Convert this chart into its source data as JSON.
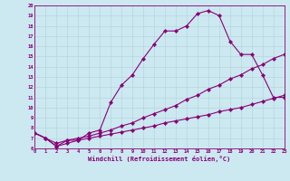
{
  "xlabel": "Windchill (Refroidissement éolien,°C)",
  "bg_color": "#cce8f0",
  "line_color": "#880077",
  "xmin": 0,
  "xmax": 23,
  "ymin": 6,
  "ymax": 20,
  "line1_x": [
    0,
    1,
    2,
    3,
    4,
    5,
    6,
    7,
    8,
    9,
    10,
    11,
    12,
    13,
    14,
    15,
    16,
    17,
    18,
    19,
    20,
    21,
    22,
    23
  ],
  "line1_y": [
    7.5,
    7.0,
    6.2,
    6.8,
    6.8,
    7.5,
    7.8,
    10.5,
    12.2,
    13.2,
    14.8,
    16.2,
    17.5,
    17.5,
    18.0,
    19.2,
    19.5,
    19.0,
    16.5,
    15.2,
    15.2,
    13.2,
    11.0,
    11.0
  ],
  "line2_x": [
    0,
    1,
    2,
    3,
    4,
    5,
    6,
    7,
    8,
    9,
    10,
    11,
    12,
    13,
    14,
    15,
    16,
    17,
    18,
    19,
    20,
    21,
    22,
    23
  ],
  "line2_y": [
    7.5,
    7.0,
    6.5,
    6.8,
    7.0,
    7.2,
    7.5,
    7.8,
    8.2,
    8.5,
    9.0,
    9.4,
    9.8,
    10.2,
    10.8,
    11.2,
    11.8,
    12.2,
    12.8,
    13.2,
    13.8,
    14.2,
    14.8,
    15.2
  ],
  "line3_x": [
    0,
    1,
    2,
    3,
    4,
    5,
    6,
    7,
    8,
    9,
    10,
    11,
    12,
    13,
    14,
    15,
    16,
    17,
    18,
    19,
    20,
    21,
    22,
    23
  ],
  "line3_y": [
    7.5,
    7.0,
    6.2,
    6.5,
    6.8,
    7.0,
    7.2,
    7.4,
    7.6,
    7.8,
    8.0,
    8.2,
    8.5,
    8.7,
    8.9,
    9.1,
    9.3,
    9.6,
    9.8,
    10.0,
    10.3,
    10.6,
    10.9,
    11.2
  ],
  "yticks": [
    6,
    7,
    8,
    9,
    10,
    11,
    12,
    13,
    14,
    15,
    16,
    17,
    18,
    19,
    20
  ],
  "xticks": [
    0,
    1,
    2,
    3,
    4,
    5,
    6,
    7,
    8,
    9,
    10,
    11,
    12,
    13,
    14,
    15,
    16,
    17,
    18,
    19,
    20,
    21,
    22,
    23
  ]
}
